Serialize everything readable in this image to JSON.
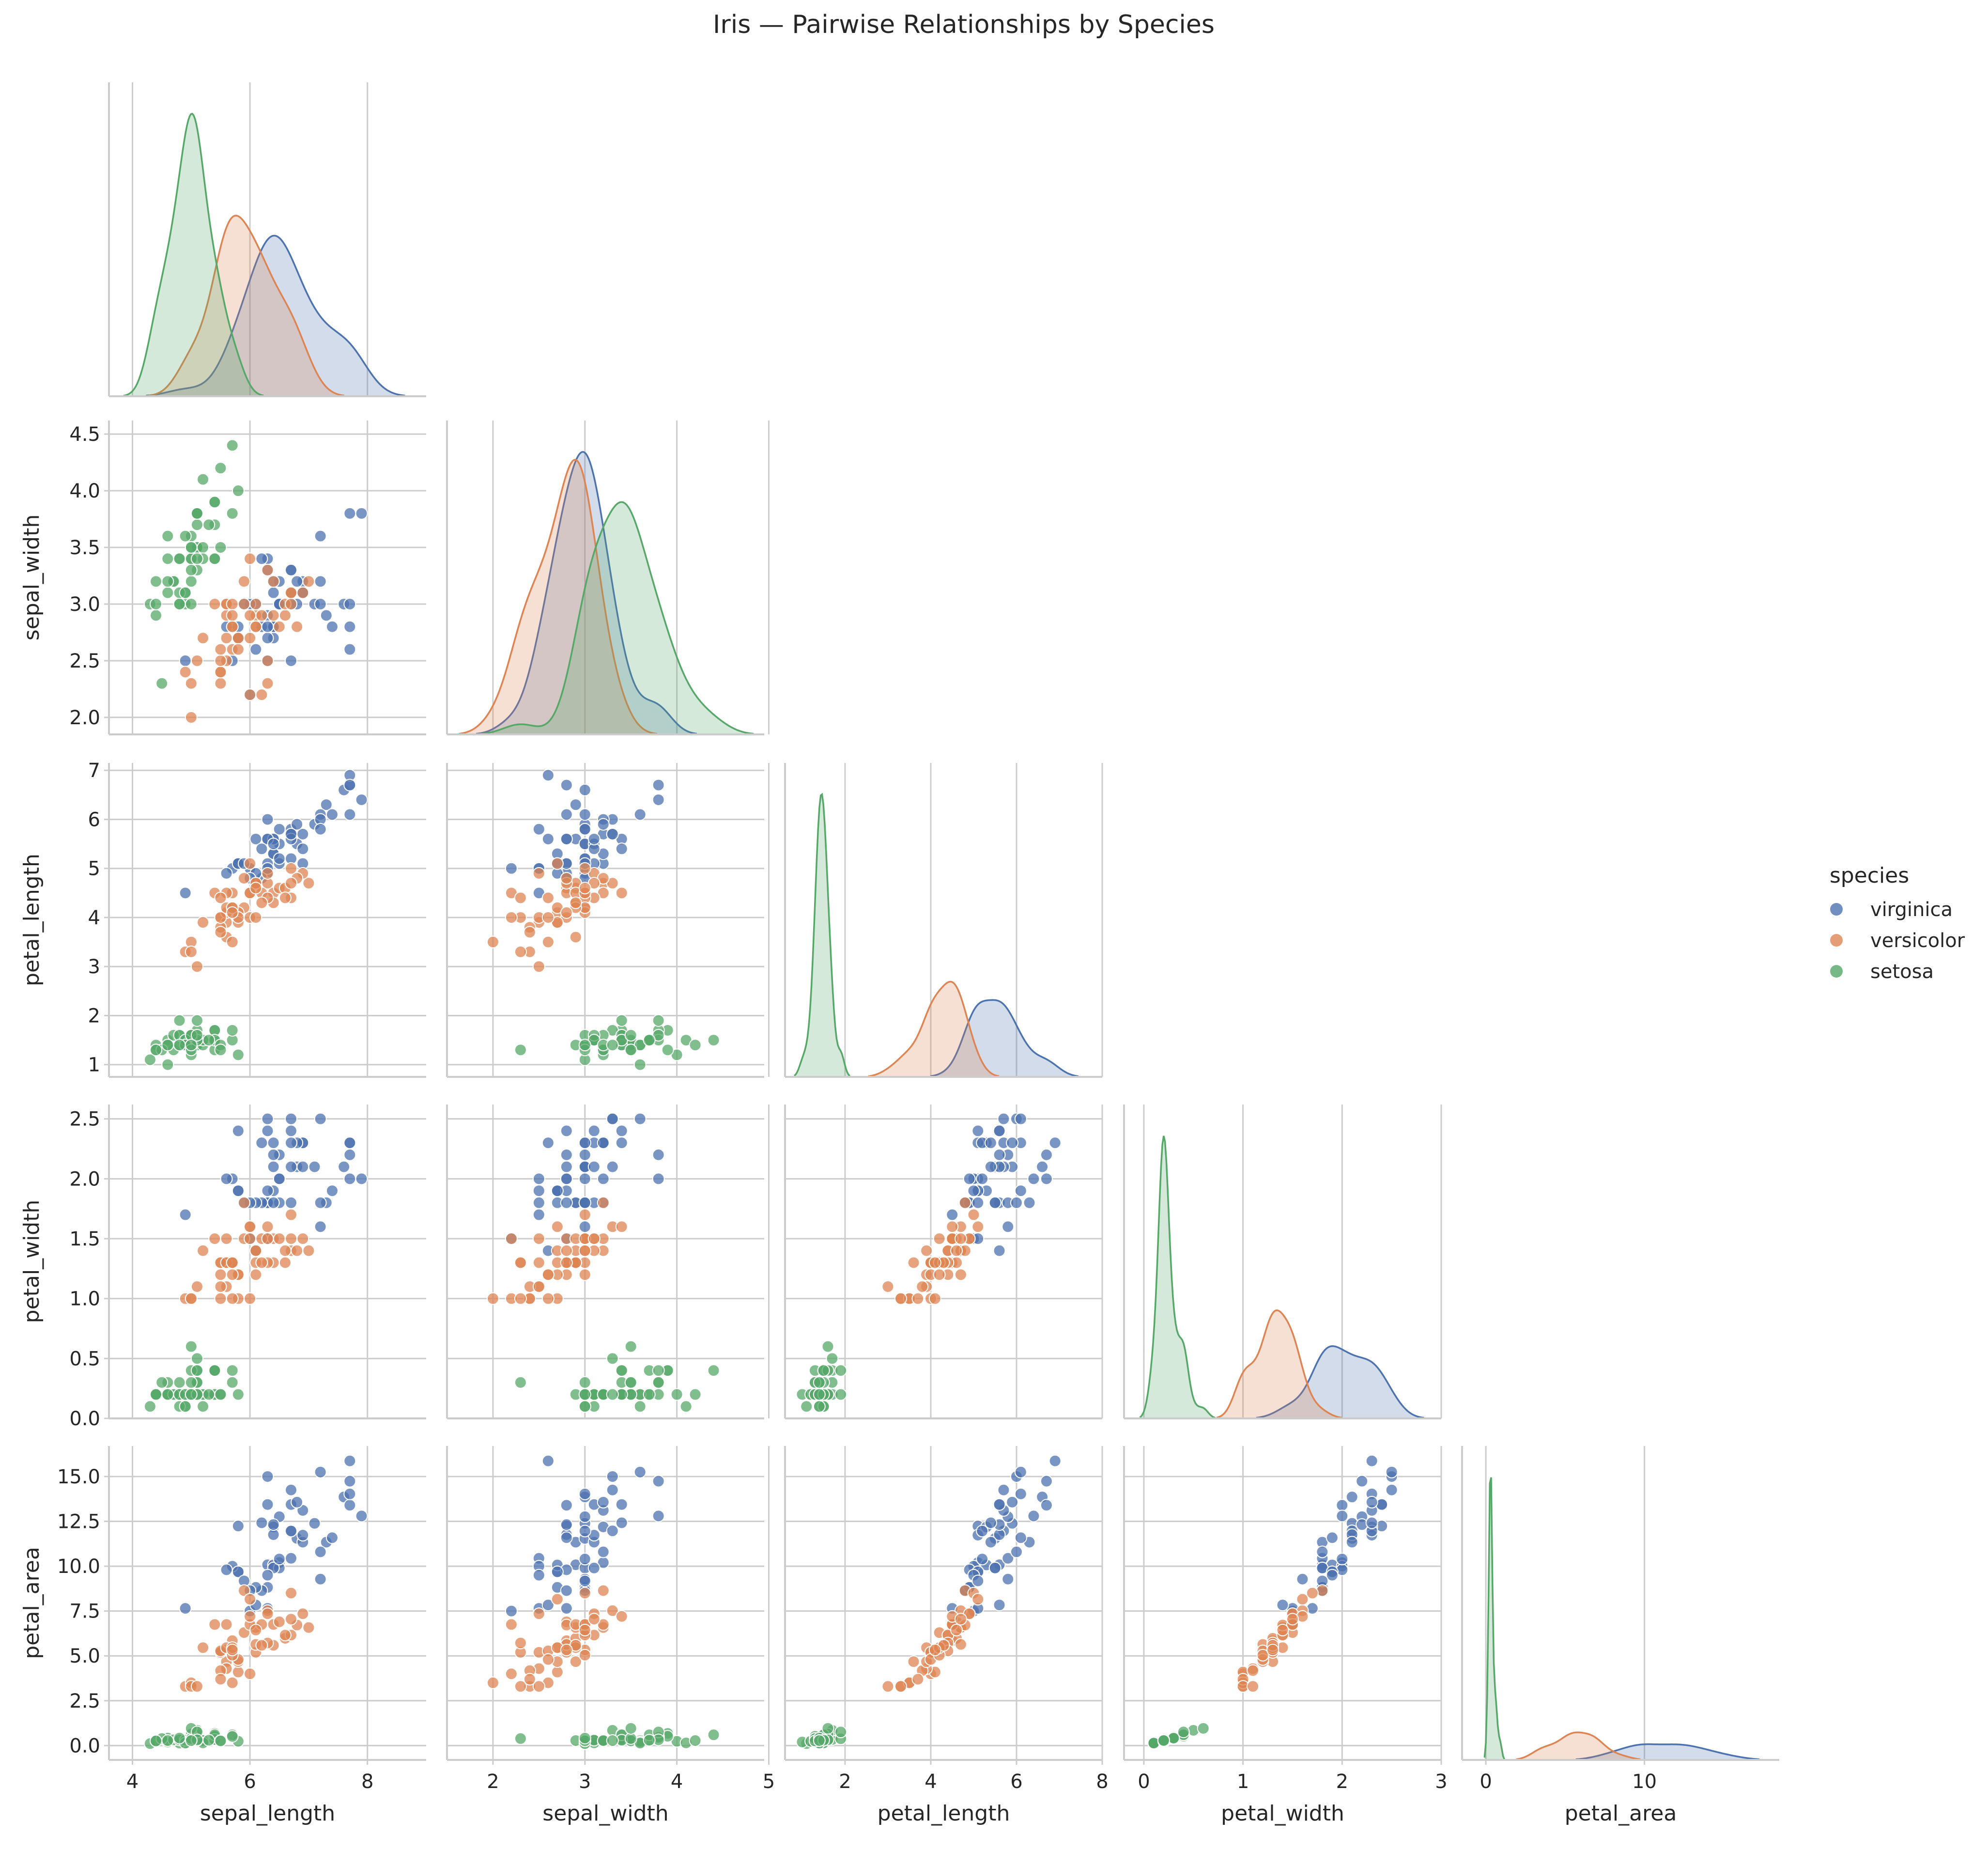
{
  "chart_data": {
    "type": "scatter",
    "title": "Iris — Pairwise Relationships by Species",
    "variables": [
      "sepal_length",
      "sepal_width",
      "petal_length",
      "petal_width",
      "petal_area"
    ],
    "axis": {
      "sepal_length": {
        "range": [
          3.6,
          9.0
        ],
        "ticks": [
          4,
          6,
          8
        ]
      },
      "sepal_width": {
        "range": [
          1.5,
          4.95
        ],
        "ticks": [
          2,
          3,
          4,
          5
        ]
      },
      "petal_length": {
        "range": [
          0.6,
          8.0
        ],
        "ticks": [
          2,
          4,
          6,
          8
        ]
      },
      "petal_width": {
        "range": [
          -0.2,
          3.0
        ],
        "ticks": [
          0,
          1,
          2,
          3
        ]
      },
      "petal_area": {
        "range": [
          -1.5,
          18.5
        ],
        "ticks": [
          0,
          10
        ]
      }
    },
    "y_axis": {
      "sepal_width": {
        "range": [
          1.85,
          4.62
        ],
        "ticks": [
          "2.0",
          "2.5",
          "3.0",
          "3.5",
          "4.0",
          "4.5"
        ]
      },
      "petal_length": {
        "range": [
          0.75,
          7.15
        ],
        "ticks": [
          "1",
          "2",
          "3",
          "4",
          "5",
          "6",
          "7"
        ]
      },
      "petal_width": {
        "range": [
          0.0,
          2.62
        ],
        "ticks": [
          "0.0",
          "0.5",
          "1.0",
          "1.5",
          "2.0",
          "2.5"
        ]
      },
      "petal_area": {
        "range": [
          -0.8,
          16.7
        ],
        "ticks": [
          "0.0",
          "2.5",
          "5.0",
          "7.5",
          "10.0",
          "12.5",
          "15.0"
        ]
      }
    },
    "legend": {
      "title": "species",
      "position": "right"
    },
    "grid": true,
    "series": [
      {
        "name": "virginica",
        "color": "#4c72b0",
        "points": [
          [
            6.3,
            3.3,
            6.0,
            2.5
          ],
          [
            5.8,
            2.7,
            5.1,
            1.9
          ],
          [
            7.1,
            3.0,
            5.9,
            2.1
          ],
          [
            6.3,
            2.9,
            5.6,
            1.8
          ],
          [
            6.5,
            3.0,
            5.8,
            2.2
          ],
          [
            7.6,
            3.0,
            6.6,
            2.1
          ],
          [
            4.9,
            2.5,
            4.5,
            1.7
          ],
          [
            7.3,
            2.9,
            6.3,
            1.8
          ],
          [
            6.7,
            2.5,
            5.8,
            1.8
          ],
          [
            7.2,
            3.6,
            6.1,
            2.5
          ],
          [
            6.5,
            3.2,
            5.1,
            2.0
          ],
          [
            6.4,
            2.7,
            5.3,
            1.9
          ],
          [
            6.8,
            3.0,
            5.5,
            2.1
          ],
          [
            5.7,
            2.5,
            5.0,
            2.0
          ],
          [
            5.8,
            2.8,
            5.1,
            2.4
          ],
          [
            6.4,
            3.2,
            5.3,
            2.3
          ],
          [
            6.5,
            3.0,
            5.5,
            1.8
          ],
          [
            7.7,
            3.8,
            6.7,
            2.2
          ],
          [
            7.7,
            2.6,
            6.9,
            2.3
          ],
          [
            6.0,
            2.2,
            5.0,
            1.5
          ],
          [
            6.9,
            3.2,
            5.7,
            2.3
          ],
          [
            5.6,
            2.8,
            4.9,
            2.0
          ],
          [
            7.7,
            2.8,
            6.7,
            2.0
          ],
          [
            6.3,
            2.7,
            4.9,
            1.8
          ],
          [
            6.7,
            3.3,
            5.7,
            2.1
          ],
          [
            7.2,
            3.2,
            6.0,
            1.8
          ],
          [
            6.2,
            2.8,
            4.8,
            1.8
          ],
          [
            6.1,
            3.0,
            4.9,
            1.8
          ],
          [
            6.4,
            2.8,
            5.6,
            2.1
          ],
          [
            7.2,
            3.0,
            5.8,
            1.6
          ],
          [
            7.4,
            2.8,
            6.1,
            1.9
          ],
          [
            7.9,
            3.8,
            6.4,
            2.0
          ],
          [
            6.4,
            2.8,
            5.6,
            2.2
          ],
          [
            6.3,
            2.8,
            5.1,
            1.5
          ],
          [
            6.1,
            2.6,
            5.6,
            1.4
          ],
          [
            7.7,
            3.0,
            6.1,
            2.3
          ],
          [
            6.3,
            3.4,
            5.6,
            2.4
          ],
          [
            6.4,
            3.1,
            5.5,
            1.8
          ],
          [
            6.0,
            3.0,
            4.8,
            1.8
          ],
          [
            6.9,
            3.1,
            5.4,
            2.1
          ],
          [
            6.7,
            3.1,
            5.6,
            2.4
          ],
          [
            6.9,
            3.1,
            5.1,
            2.3
          ],
          [
            5.8,
            2.7,
            5.1,
            1.9
          ],
          [
            6.8,
            3.2,
            5.9,
            2.3
          ],
          [
            6.7,
            3.3,
            5.7,
            2.5
          ],
          [
            6.7,
            3.0,
            5.2,
            2.3
          ],
          [
            6.3,
            2.5,
            5.0,
            1.9
          ],
          [
            6.5,
            3.0,
            5.2,
            2.0
          ],
          [
            6.2,
            3.4,
            5.4,
            2.3
          ],
          [
            5.9,
            3.0,
            5.1,
            1.8
          ]
        ]
      },
      {
        "name": "versicolor",
        "color": "#dd8452",
        "points": [
          [
            7.0,
            3.2,
            4.7,
            1.4
          ],
          [
            6.4,
            3.2,
            4.5,
            1.5
          ],
          [
            6.9,
            3.1,
            4.9,
            1.5
          ],
          [
            5.5,
            2.3,
            4.0,
            1.3
          ],
          [
            6.5,
            2.8,
            4.6,
            1.5
          ],
          [
            5.7,
            2.8,
            4.5,
            1.3
          ],
          [
            6.3,
            3.3,
            4.7,
            1.6
          ],
          [
            4.9,
            2.4,
            3.3,
            1.0
          ],
          [
            6.6,
            2.9,
            4.6,
            1.3
          ],
          [
            5.2,
            2.7,
            3.9,
            1.4
          ],
          [
            5.0,
            2.0,
            3.5,
            1.0
          ],
          [
            5.9,
            3.0,
            4.2,
            1.5
          ],
          [
            6.0,
            2.2,
            4.0,
            1.0
          ],
          [
            6.1,
            2.9,
            4.7,
            1.4
          ],
          [
            5.6,
            2.9,
            3.6,
            1.3
          ],
          [
            6.7,
            3.1,
            4.4,
            1.4
          ],
          [
            5.6,
            3.0,
            4.5,
            1.5
          ],
          [
            5.8,
            2.7,
            4.1,
            1.0
          ],
          [
            6.2,
            2.2,
            4.5,
            1.5
          ],
          [
            5.6,
            2.5,
            3.9,
            1.1
          ],
          [
            5.9,
            3.2,
            4.8,
            1.8
          ],
          [
            6.1,
            2.8,
            4.0,
            1.3
          ],
          [
            6.3,
            2.5,
            4.9,
            1.5
          ],
          [
            6.1,
            2.8,
            4.7,
            1.2
          ],
          [
            6.4,
            2.9,
            4.3,
            1.3
          ],
          [
            6.6,
            3.0,
            4.4,
            1.4
          ],
          [
            6.8,
            2.8,
            4.8,
            1.4
          ],
          [
            6.7,
            3.0,
            5.0,
            1.7
          ],
          [
            6.0,
            2.9,
            4.5,
            1.5
          ],
          [
            5.7,
            2.6,
            3.5,
            1.0
          ],
          [
            5.5,
            2.4,
            3.8,
            1.1
          ],
          [
            5.5,
            2.4,
            3.7,
            1.0
          ],
          [
            5.8,
            2.7,
            3.9,
            1.2
          ],
          [
            6.0,
            2.7,
            5.1,
            1.6
          ],
          [
            5.4,
            3.0,
            4.5,
            1.5
          ],
          [
            6.0,
            3.4,
            4.5,
            1.6
          ],
          [
            6.7,
            3.1,
            4.7,
            1.5
          ],
          [
            6.3,
            2.3,
            4.4,
            1.3
          ],
          [
            5.6,
            3.0,
            4.1,
            1.3
          ],
          [
            5.5,
            2.5,
            4.0,
            1.3
          ],
          [
            5.5,
            2.6,
            4.4,
            1.2
          ],
          [
            6.1,
            3.0,
            4.6,
            1.4
          ],
          [
            5.8,
            2.6,
            4.0,
            1.2
          ],
          [
            5.0,
            2.3,
            3.3,
            1.0
          ],
          [
            5.6,
            2.7,
            4.2,
            1.3
          ],
          [
            5.7,
            3.0,
            4.2,
            1.2
          ],
          [
            5.7,
            2.9,
            4.2,
            1.3
          ],
          [
            6.2,
            2.9,
            4.3,
            1.3
          ],
          [
            5.1,
            2.5,
            3.0,
            1.1
          ],
          [
            5.7,
            2.8,
            4.1,
            1.3
          ]
        ]
      },
      {
        "name": "setosa",
        "color": "#55a868",
        "points": [
          [
            5.1,
            3.5,
            1.4,
            0.2
          ],
          [
            4.9,
            3.0,
            1.4,
            0.2
          ],
          [
            4.7,
            3.2,
            1.3,
            0.2
          ],
          [
            4.6,
            3.1,
            1.5,
            0.2
          ],
          [
            5.0,
            3.6,
            1.4,
            0.2
          ],
          [
            5.4,
            3.9,
            1.7,
            0.4
          ],
          [
            4.6,
            3.4,
            1.4,
            0.3
          ],
          [
            5.0,
            3.4,
            1.5,
            0.2
          ],
          [
            4.4,
            2.9,
            1.4,
            0.2
          ],
          [
            4.9,
            3.1,
            1.5,
            0.1
          ],
          [
            5.4,
            3.7,
            1.5,
            0.2
          ],
          [
            4.8,
            3.4,
            1.6,
            0.2
          ],
          [
            4.8,
            3.0,
            1.4,
            0.1
          ],
          [
            4.3,
            3.0,
            1.1,
            0.1
          ],
          [
            5.8,
            4.0,
            1.2,
            0.2
          ],
          [
            5.7,
            4.4,
            1.5,
            0.4
          ],
          [
            5.4,
            3.9,
            1.3,
            0.4
          ],
          [
            5.1,
            3.5,
            1.4,
            0.3
          ],
          [
            5.7,
            3.8,
            1.7,
            0.3
          ],
          [
            5.1,
            3.8,
            1.5,
            0.3
          ],
          [
            5.4,
            3.4,
            1.7,
            0.2
          ],
          [
            5.1,
            3.7,
            1.5,
            0.4
          ],
          [
            4.6,
            3.6,
            1.0,
            0.2
          ],
          [
            5.1,
            3.3,
            1.7,
            0.5
          ],
          [
            4.8,
            3.4,
            1.9,
            0.2
          ],
          [
            5.0,
            3.0,
            1.6,
            0.2
          ],
          [
            5.0,
            3.4,
            1.6,
            0.4
          ],
          [
            5.2,
            3.5,
            1.5,
            0.2
          ],
          [
            5.2,
            3.4,
            1.4,
            0.2
          ],
          [
            4.7,
            3.2,
            1.6,
            0.2
          ],
          [
            4.8,
            3.1,
            1.6,
            0.2
          ],
          [
            5.4,
            3.4,
            1.5,
            0.4
          ],
          [
            5.2,
            4.1,
            1.5,
            0.1
          ],
          [
            5.5,
            4.2,
            1.4,
            0.2
          ],
          [
            4.9,
            3.1,
            1.5,
            0.2
          ],
          [
            5.0,
            3.2,
            1.2,
            0.2
          ],
          [
            5.5,
            3.5,
            1.3,
            0.2
          ],
          [
            4.9,
            3.6,
            1.4,
            0.1
          ],
          [
            4.4,
            3.0,
            1.3,
            0.2
          ],
          [
            5.1,
            3.4,
            1.5,
            0.2
          ],
          [
            5.0,
            3.5,
            1.3,
            0.3
          ],
          [
            4.5,
            2.3,
            1.3,
            0.3
          ],
          [
            4.4,
            3.2,
            1.3,
            0.2
          ],
          [
            5.0,
            3.5,
            1.6,
            0.6
          ],
          [
            5.1,
            3.8,
            1.9,
            0.4
          ],
          [
            4.8,
            3.0,
            1.4,
            0.3
          ],
          [
            5.1,
            3.8,
            1.6,
            0.2
          ],
          [
            4.6,
            3.2,
            1.4,
            0.2
          ],
          [
            5.3,
            3.7,
            1.5,
            0.2
          ],
          [
            5.0,
            3.3,
            1.4,
            0.2
          ]
        ]
      }
    ]
  }
}
